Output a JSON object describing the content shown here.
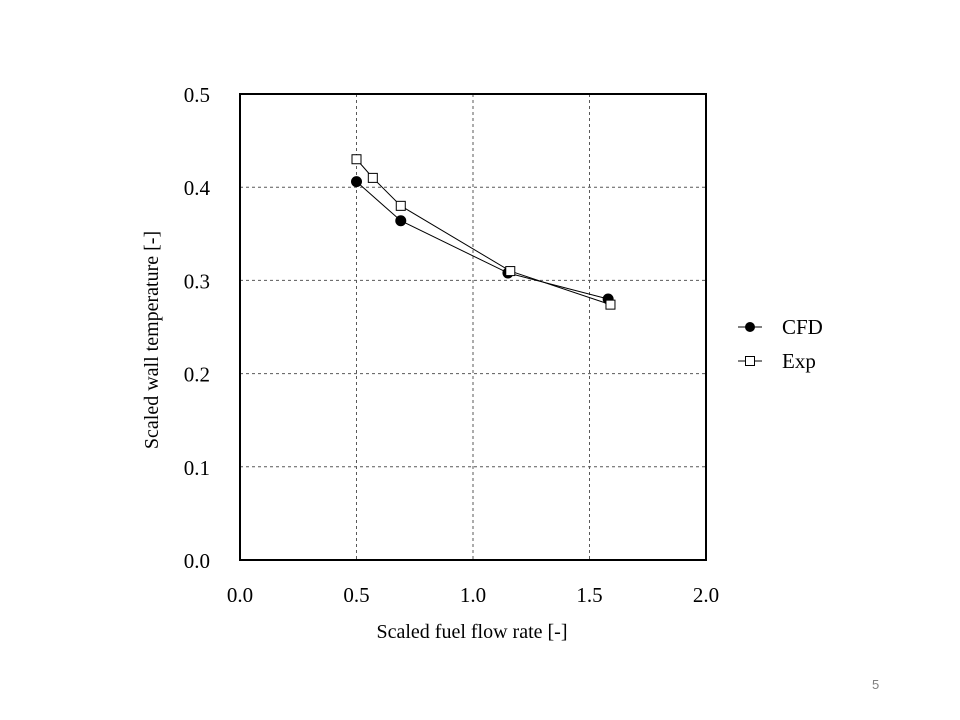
{
  "slide": {
    "page_number": "5"
  },
  "chart_data": {
    "type": "line",
    "title": "",
    "xlabel": "Scaled fuel flow rate [-]",
    "ylabel": "Scaled wall temperature [-]",
    "xlim": [
      0.0,
      2.0
    ],
    "ylim": [
      0.0,
      0.5
    ],
    "xticks": [
      0.0,
      0.5,
      1.0,
      1.5,
      2.0
    ],
    "yticks": [
      0.0,
      0.1,
      0.2,
      0.3,
      0.4,
      0.5
    ],
    "xtick_labels": [
      "0.0",
      "0.5",
      "1.0",
      "1.5",
      "2.0"
    ],
    "ytick_labels": [
      "0.0",
      "0.1",
      "0.2",
      "0.3",
      "0.4",
      "0.5"
    ],
    "grid": true,
    "legend_position": "right",
    "series": [
      {
        "name": "CFD",
        "marker": "filled-circle",
        "color": "#000000",
        "x": [
          0.5,
          0.69,
          1.15,
          1.58
        ],
        "y": [
          0.406,
          0.364,
          0.308,
          0.28
        ]
      },
      {
        "name": "Exp",
        "marker": "open-square",
        "color": "#000000",
        "x": [
          0.5,
          0.57,
          0.69,
          1.16,
          1.59
        ],
        "y": [
          0.43,
          0.41,
          0.38,
          0.31,
          0.274
        ]
      }
    ]
  }
}
